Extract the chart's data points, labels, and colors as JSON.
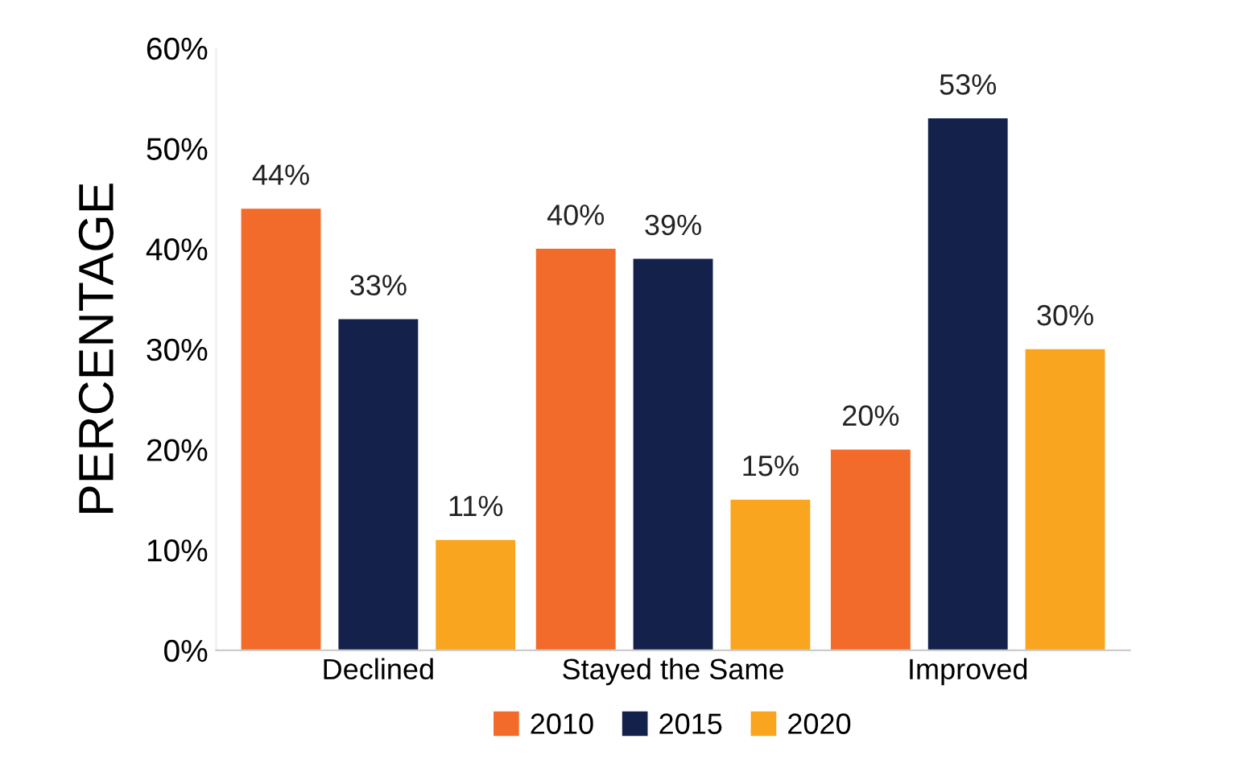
{
  "chart_data": {
    "type": "bar",
    "ylabel": "PERCENTAGE",
    "categories": [
      "Declined",
      "Stayed the Same",
      "Improved"
    ],
    "series": [
      {
        "name": "2010",
        "color": "#f26b2a",
        "values": [
          44,
          40,
          20
        ],
        "value_labels": [
          "44%",
          "40%",
          "20%"
        ]
      },
      {
        "name": "2015",
        "color": "#14214b",
        "values": [
          33,
          39,
          53
        ],
        "value_labels": [
          "33%",
          "39%",
          "53%"
        ]
      },
      {
        "name": "2020",
        "color": "#f9a51f",
        "values": [
          11,
          15,
          30
        ],
        "value_labels": [
          "11%",
          "15%",
          "30%"
        ]
      }
    ],
    "ylim": [
      0,
      60
    ],
    "yticks": [
      {
        "value": 0,
        "label": "0%"
      },
      {
        "value": 10,
        "label": "10%"
      },
      {
        "value": 20,
        "label": "20%"
      },
      {
        "value": 30,
        "label": "30%"
      },
      {
        "value": 40,
        "label": "40%"
      },
      {
        "value": 50,
        "label": "50%"
      },
      {
        "value": 60,
        "label": "60%"
      }
    ],
    "grid": false,
    "legend": "bottom"
  }
}
